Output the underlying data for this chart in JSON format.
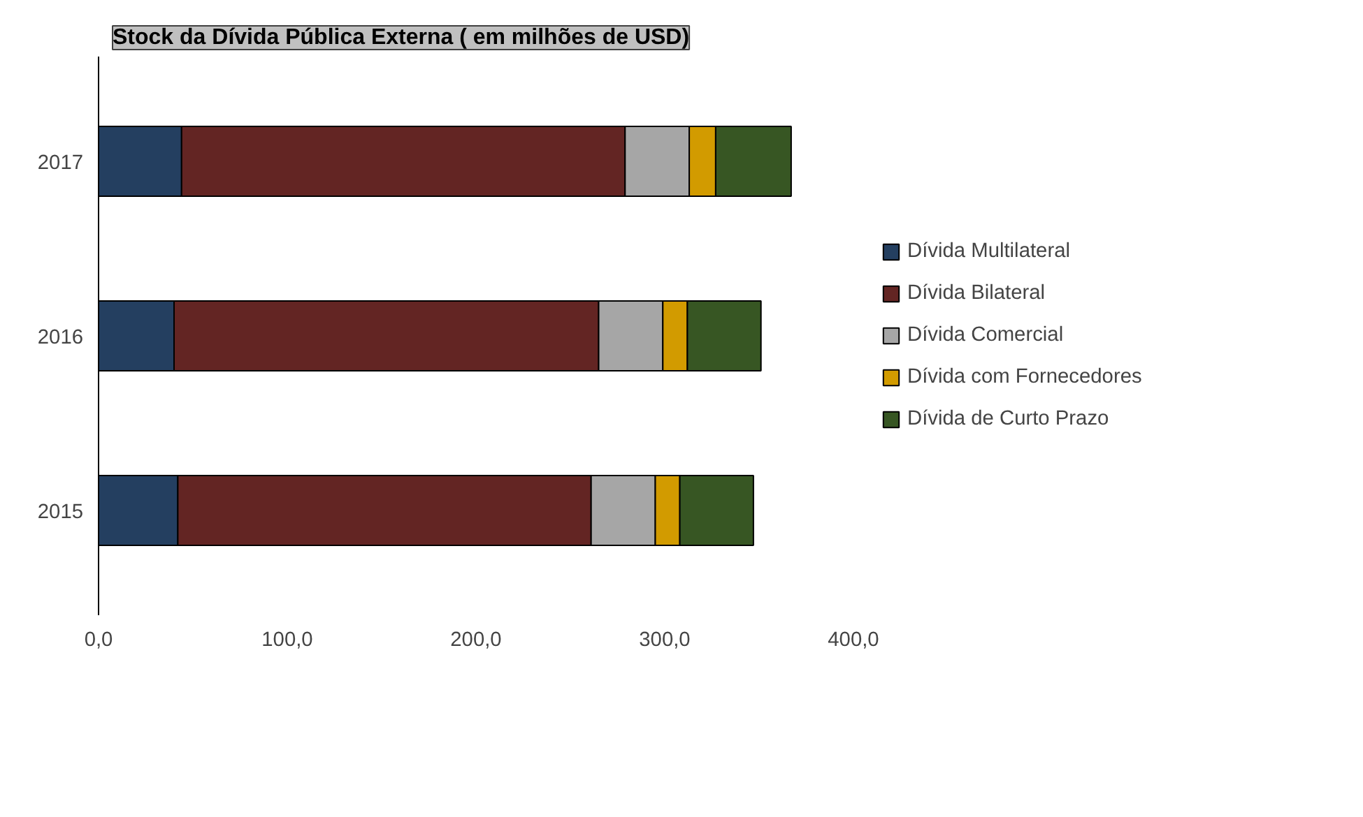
{
  "chart_data": {
    "type": "bar",
    "orientation": "horizontal",
    "stacked": true,
    "title": "Stock da Dívida Pública Externa ( em milhões de USD)",
    "categories": [
      "2017",
      "2016",
      "2015"
    ],
    "series": [
      {
        "name": "Dívida Multilateral",
        "color": "#243f60",
        "values": [
          44,
          40,
          42
        ]
      },
      {
        "name": "Dívida Bilateral",
        "color": "#632523",
        "values": [
          235,
          225,
          219
        ]
      },
      {
        "name": "Dívida Comercial",
        "color": "#a6a6a6",
        "values": [
          34,
          34,
          34
        ]
      },
      {
        "name": "Dívida com Fornecedores",
        "color": "#d29b00",
        "values": [
          14,
          13,
          13
        ]
      },
      {
        "name": "Dívida de Curto Prazo",
        "color": "#375623",
        "values": [
          40,
          39,
          39
        ]
      }
    ],
    "xlim": [
      0,
      400
    ],
    "xticks": [
      {
        "value": 0,
        "label": "0,0"
      },
      {
        "value": 100,
        "label": "100,0"
      },
      {
        "value": 200,
        "label": "200,0"
      },
      {
        "value": 300,
        "label": "300,0"
      },
      {
        "value": 400,
        "label": "400,0"
      }
    ],
    "grid": false,
    "legend": "right"
  }
}
